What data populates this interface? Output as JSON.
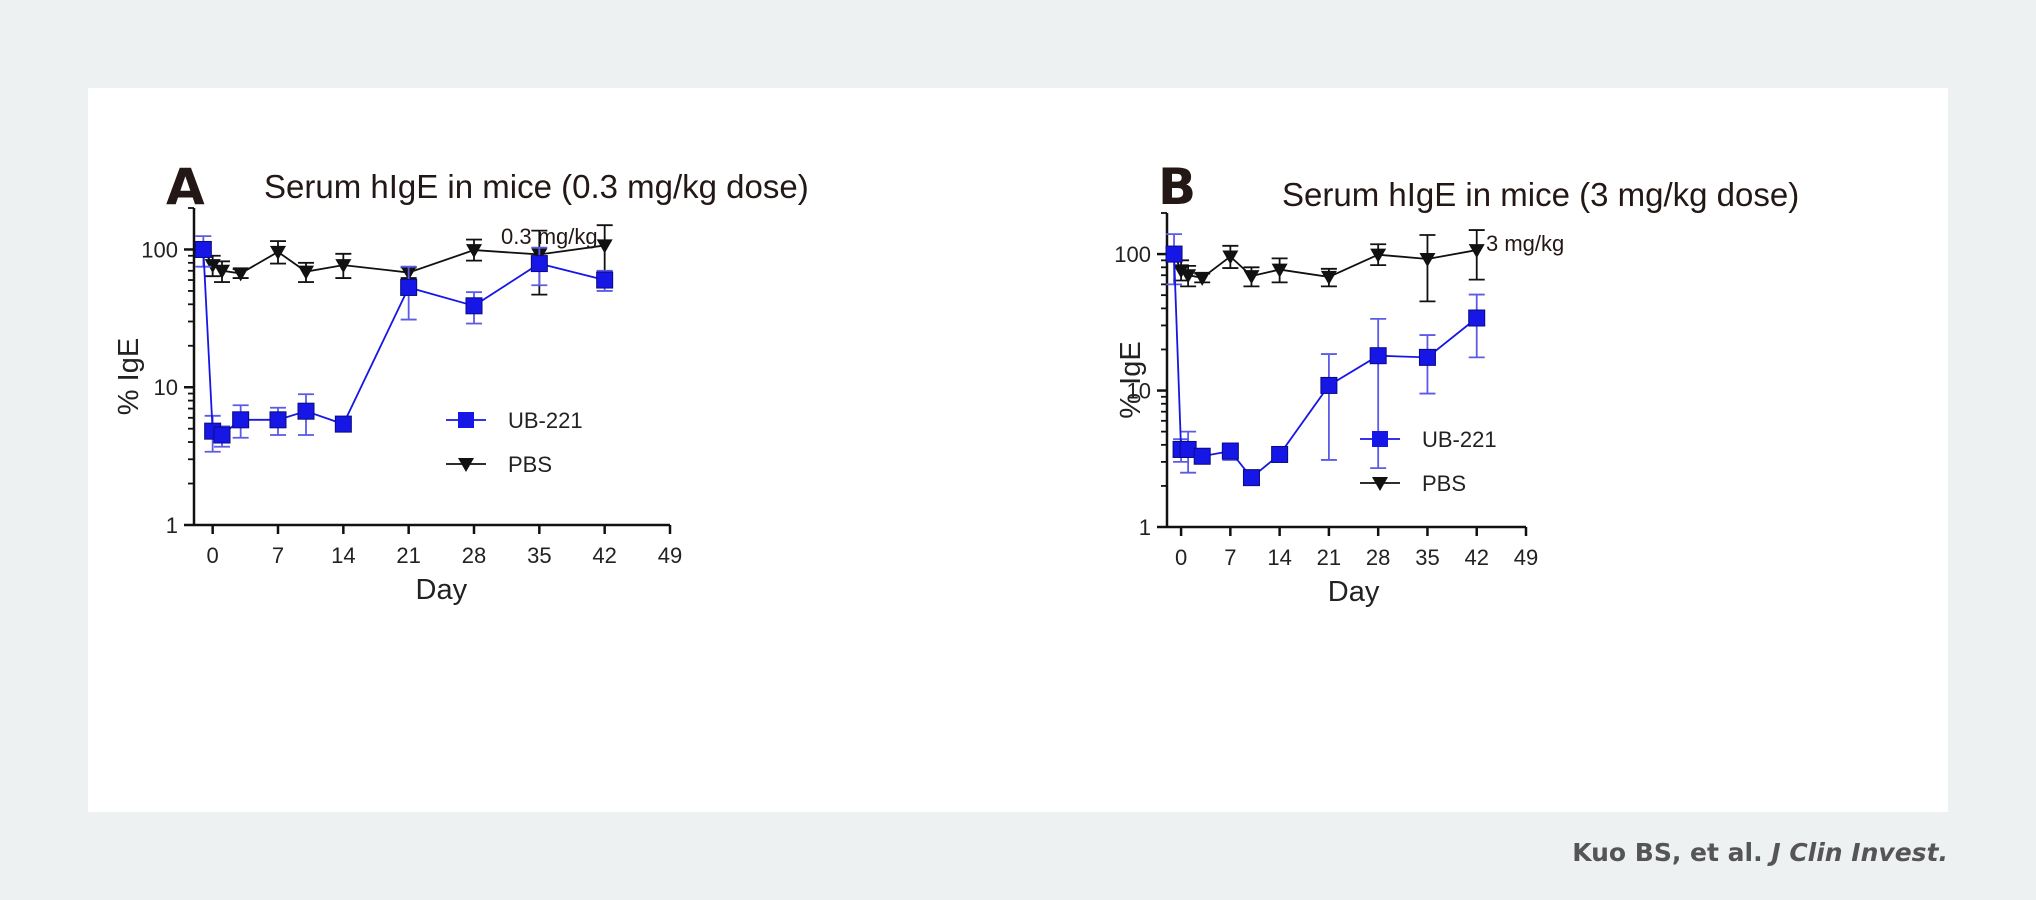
{
  "colors": {
    "ub221": "#1616e6",
    "ub221_error": "#5b5be8",
    "pbs": "#111111",
    "background": "#eef1f2",
    "card": "#ffffff"
  },
  "citation": {
    "authors": "Kuo BS, et al. ",
    "journal": "J Clin Invest."
  },
  "chart_data": [
    {
      "panel_label": "A",
      "type": "line",
      "title": "Serum hIgE in mice (0.3 mg/kg dose)",
      "subtitle": "0.3 mg/kg",
      "xlabel": "Day",
      "ylabel": "% IgE",
      "yscale": "log",
      "xlim": [
        -2,
        49
      ],
      "ylim": [
        1,
        200
      ],
      "xticks": [
        0,
        7,
        14,
        21,
        28,
        35,
        42,
        49
      ],
      "yticks": [
        1,
        10,
        100
      ],
      "grid": false,
      "legend_position": "center-right",
      "series": [
        {
          "name": "UB-221",
          "marker": "square",
          "color": "#1616e6",
          "x": [
            -1,
            0,
            1,
            3,
            7,
            10,
            14,
            21,
            28,
            35,
            42
          ],
          "y": [
            100,
            4.8,
            4.5,
            5.8,
            5.8,
            6.7,
            5.4,
            53,
            39,
            79,
            60
          ],
          "err_low": [
            75,
            3.4,
            3.7,
            4.3,
            4.5,
            4.5,
            5.1,
            31,
            29,
            55,
            50
          ],
          "err_high": [
            125,
            6.2,
            5.2,
            7.4,
            7.1,
            8.9,
            5.7,
            75,
            49,
            103,
            70
          ]
        },
        {
          "name": "PBS",
          "marker": "triangle-down",
          "color": "#111111",
          "x": [
            -1,
            0,
            1,
            3,
            7,
            10,
            14,
            21,
            28,
            35,
            42
          ],
          "y": [
            100,
            77,
            70,
            67,
            96,
            69,
            77,
            68,
            99,
            92,
            107
          ],
          "err_low": [
            90,
            64,
            58,
            62,
            79,
            58,
            62,
            62,
            83,
            47,
            66
          ],
          "err_high": [
            110,
            90,
            82,
            72,
            115,
            80,
            93,
            74,
            118,
            137,
            150
          ]
        }
      ]
    },
    {
      "panel_label": "B",
      "type": "line",
      "title": "Serum hIgE in mice (3 mg/kg dose)",
      "subtitle": "3 mg/kg",
      "xlabel": "Day",
      "ylabel": "% IgE",
      "yscale": "log",
      "xlim": [
        -2,
        49
      ],
      "ylim": [
        1,
        200
      ],
      "xticks": [
        0,
        7,
        14,
        21,
        28,
        35,
        42,
        49
      ],
      "yticks": [
        1,
        10,
        100
      ],
      "grid": false,
      "legend_position": "lower-right",
      "series": [
        {
          "name": "UB-221",
          "marker": "square",
          "color": "#1616e6",
          "x": [
            -1,
            0,
            1,
            3,
            7,
            10,
            14,
            21,
            28,
            35,
            42
          ],
          "y": [
            100,
            3.7,
            3.7,
            3.3,
            3.6,
            2.3,
            3.4,
            10.9,
            18,
            17.5,
            34
          ],
          "err_low": [
            60,
            3.0,
            2.5,
            3.1,
            3.1,
            2.2,
            3.1,
            3.1,
            2.7,
            9.5,
            17.5
          ],
          "err_high": [
            140,
            4.4,
            5.0,
            3.5,
            4.1,
            2.4,
            3.7,
            18.5,
            33.5,
            25.5,
            50.5
          ]
        },
        {
          "name": "PBS",
          "marker": "triangle-down",
          "color": "#111111",
          "x": [
            -1,
            0,
            1,
            3,
            7,
            10,
            14,
            21,
            28,
            35,
            42
          ],
          "y": [
            100,
            76,
            70,
            67,
            96,
            69,
            77,
            68,
            99,
            92,
            107
          ],
          "err_low": [
            90,
            64,
            58,
            62,
            79,
            58,
            62,
            58,
            83,
            45,
            65
          ],
          "err_high": [
            110,
            90,
            82,
            72,
            115,
            80,
            93,
            78,
            118,
            138,
            150
          ]
        }
      ]
    }
  ]
}
